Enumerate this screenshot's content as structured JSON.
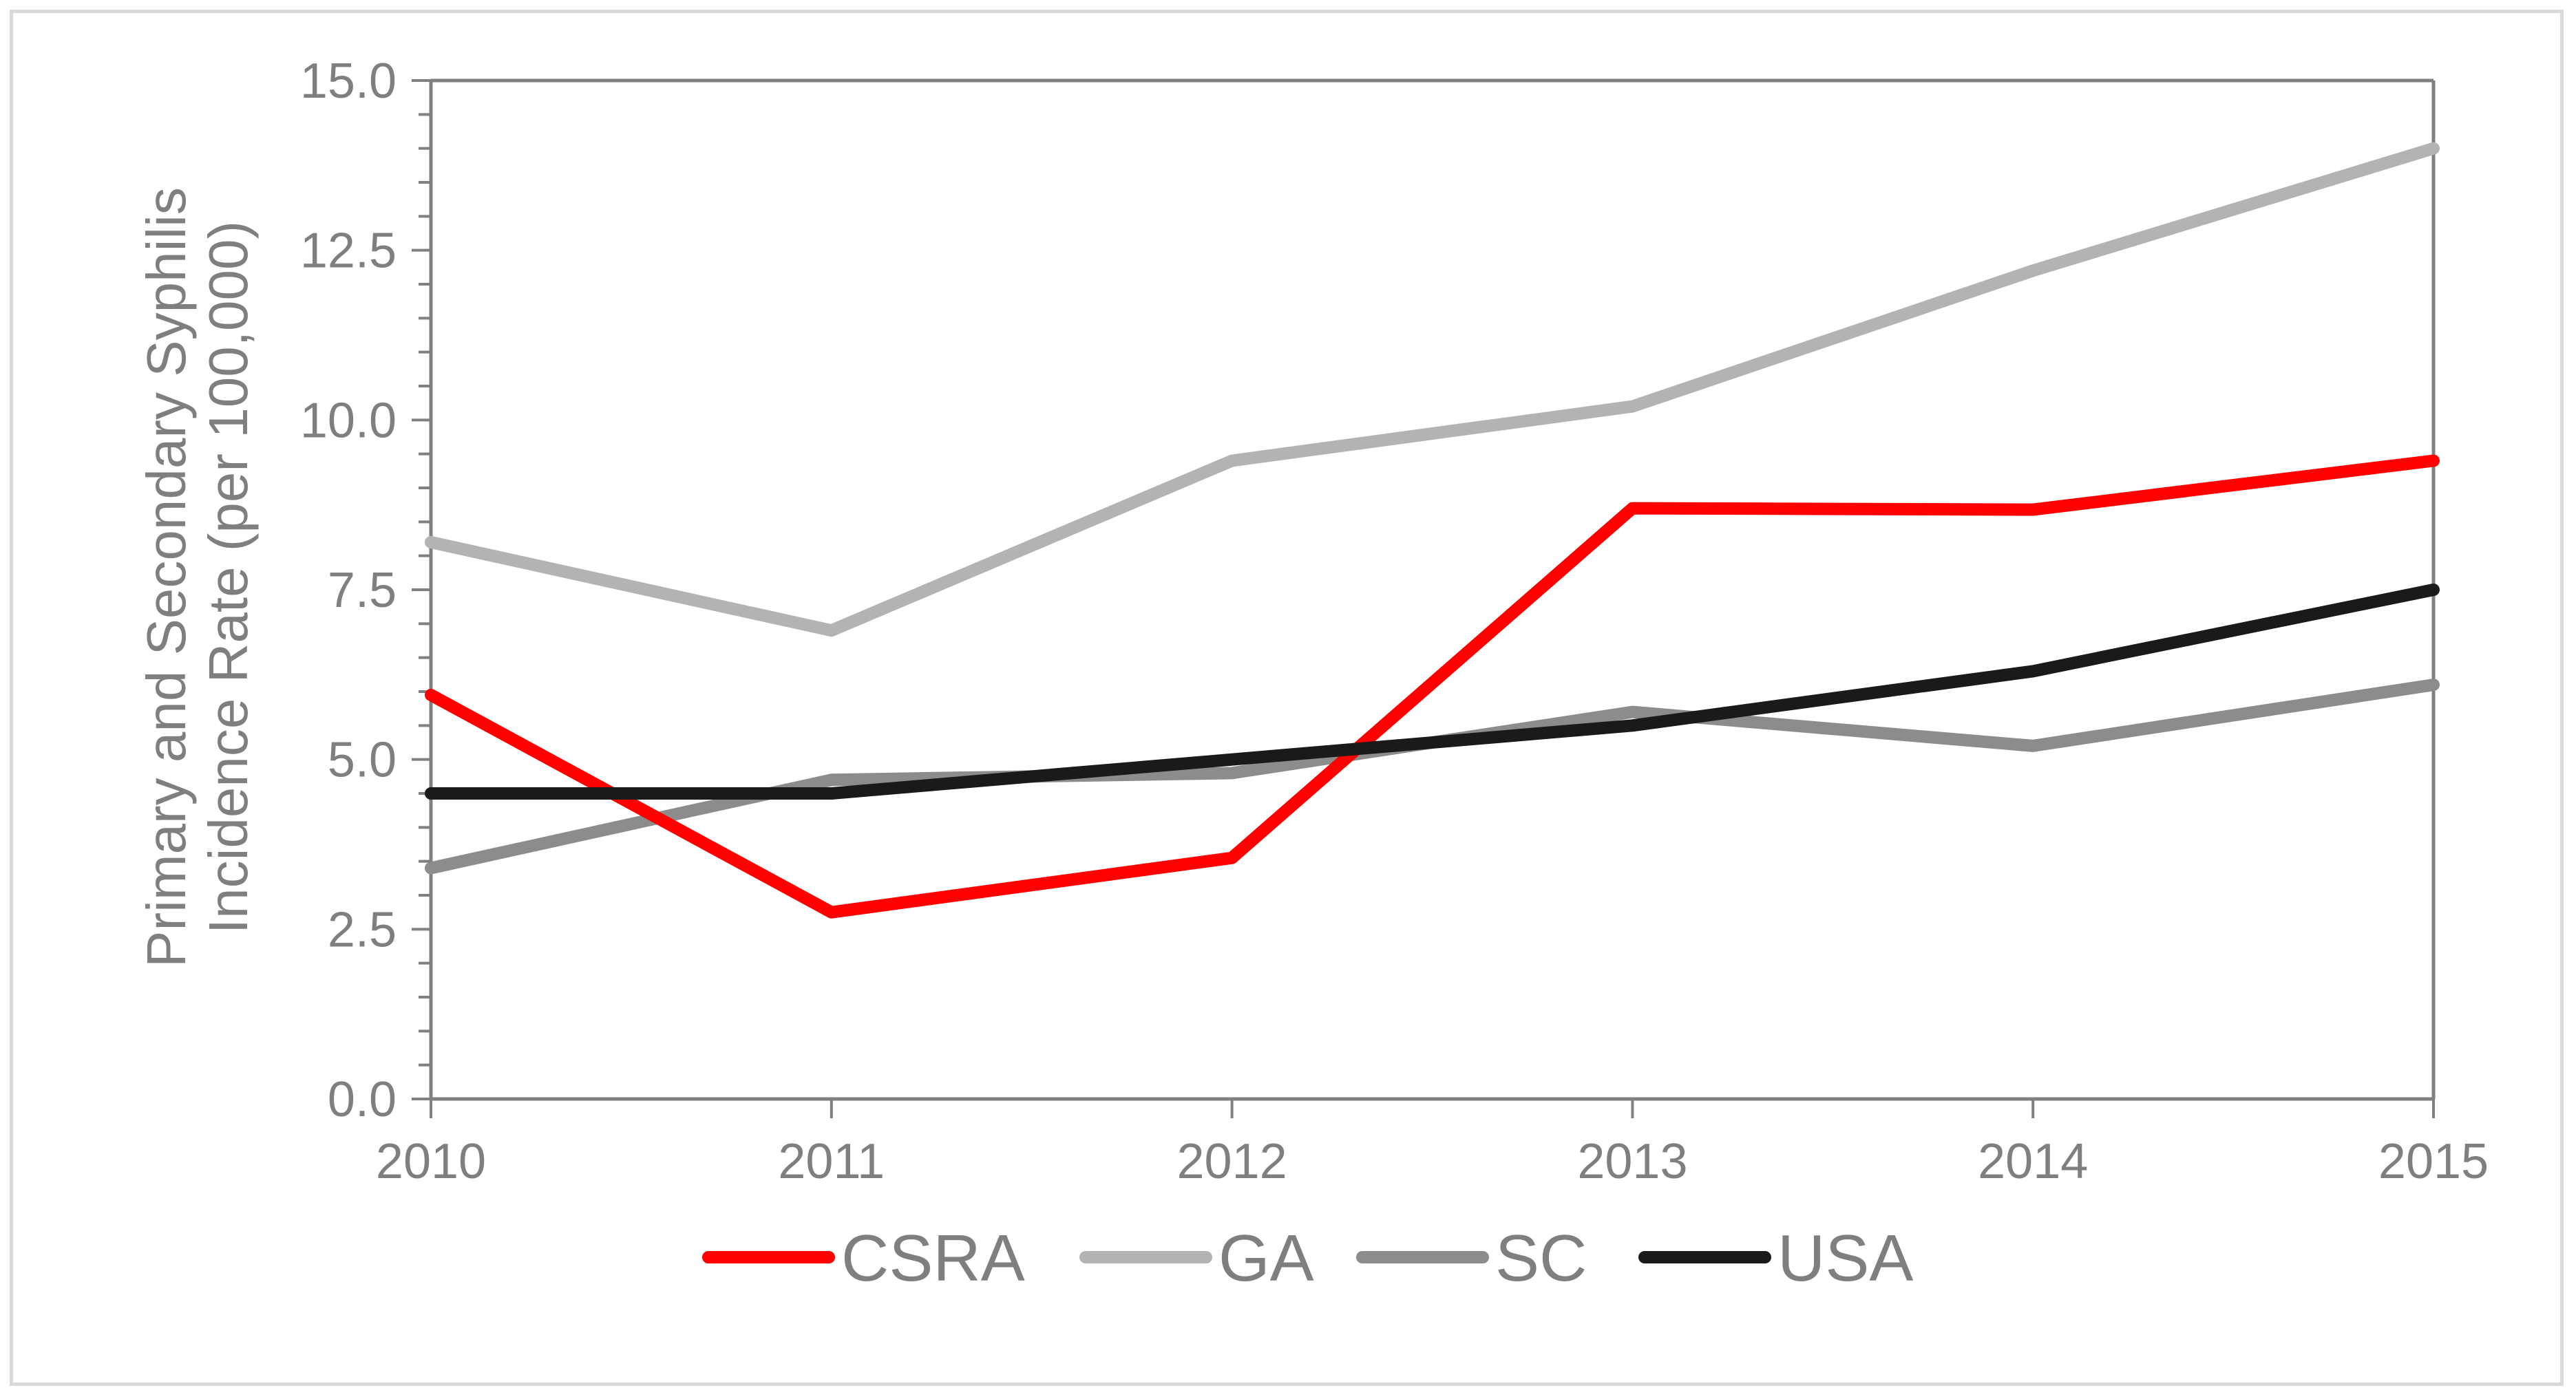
{
  "chart_data": {
    "type": "line",
    "title": "",
    "xlabel": "",
    "ylabel": "Primary and Secondary Syphilis Incidence Rate (per 100,000)",
    "ylabel_lines": [
      "Primary and Secondary Syphilis",
      "Incidence Rate (per 100,000)"
    ],
    "x": [
      "2010",
      "2011",
      "2012",
      "2013",
      "2014",
      "2015"
    ],
    "ylim": [
      0,
      15
    ],
    "y_ticks": [
      "0.0",
      "2.5",
      "5.0",
      "7.5",
      "10.0",
      "12.5",
      "15.0"
    ],
    "grid": false,
    "legend_position": "bottom",
    "axis_color": "#808080",
    "series": [
      {
        "name": "CSRA",
        "color": "#ff0000",
        "values": [
          5.95,
          2.75,
          3.55,
          8.7,
          8.68,
          9.4
        ]
      },
      {
        "name": "GA",
        "color": "#b3b3b3",
        "values": [
          8.2,
          6.9,
          9.4,
          10.2,
          12.2,
          14.0
        ]
      },
      {
        "name": "SC",
        "color": "#8c8c8c",
        "values": [
          3.4,
          4.7,
          4.8,
          5.7,
          5.2,
          6.1
        ]
      },
      {
        "name": "USA",
        "color": "#1a1a1a",
        "values": [
          4.5,
          4.5,
          5.0,
          5.5,
          6.3,
          7.5
        ]
      }
    ]
  }
}
